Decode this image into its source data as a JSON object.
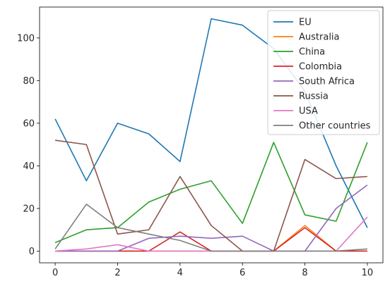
{
  "chart_data": {
    "type": "line",
    "title": "",
    "xlabel": "",
    "ylabel": "",
    "x": [
      0,
      1,
      2,
      3,
      4,
      5,
      6,
      7,
      8,
      9,
      10
    ],
    "xlim": [
      -0.5,
      10.5
    ],
    "ylim": [
      -5.5,
      114.5
    ],
    "xticks": [
      0,
      2,
      4,
      6,
      8,
      10
    ],
    "yticks": [
      0,
      20,
      40,
      60,
      80,
      100
    ],
    "grid": false,
    "legend_position": "top-right",
    "series": [
      {
        "name": "EU",
        "color": "#1f77b4",
        "values": [
          62,
          33,
          60,
          55,
          42,
          109,
          106,
          95,
          75,
          40,
          11
        ]
      },
      {
        "name": "Australia",
        "color": "#ff7f0e",
        "values": [
          0,
          0,
          0,
          0,
          0,
          0,
          0,
          0,
          12,
          0,
          0
        ]
      },
      {
        "name": "China",
        "color": "#2ca02c",
        "values": [
          4,
          10,
          11,
          23,
          29,
          33,
          13,
          51,
          17,
          14,
          51
        ]
      },
      {
        "name": "Colombia",
        "color": "#d62728",
        "values": [
          0,
          0,
          0,
          0,
          9,
          0,
          0,
          0,
          11,
          0,
          0
        ]
      },
      {
        "name": "South Africa",
        "color": "#9467bd",
        "values": [
          0,
          0,
          0,
          6,
          7,
          6,
          7,
          0,
          0,
          20,
          31
        ]
      },
      {
        "name": "Russia",
        "color": "#8c564b",
        "values": [
          52,
          50,
          8,
          10,
          35,
          12,
          0,
          0,
          43,
          34,
          35
        ]
      },
      {
        "name": "USA",
        "color": "#e377c2",
        "values": [
          0,
          1,
          3,
          0,
          0,
          0,
          0,
          0,
          0,
          0,
          16
        ]
      },
      {
        "name": "Other countries",
        "color": "#7f7f7f",
        "values": [
          1,
          22,
          11,
          8,
          5,
          0,
          0,
          0,
          0,
          0,
          1
        ]
      }
    ]
  }
}
